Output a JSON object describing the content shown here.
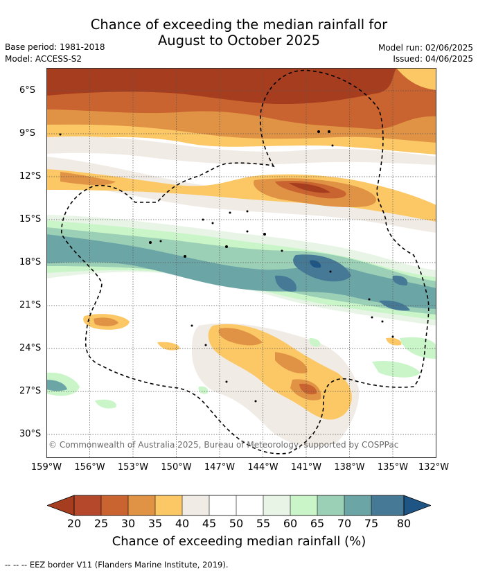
{
  "title": {
    "line1": "Chance of exceeding the median rainfall for",
    "line2": "August to October 2025"
  },
  "meta": {
    "base_period": "Base period: 1981-2018",
    "model": "Model: ACCESS-S2",
    "model_run": "Model run: 02/06/2025",
    "issued": "Issued: 04/06/2025"
  },
  "map": {
    "copyright": "© Commonwealth of Australia 2025, Bureau of Meteorology, supported by COSPPac",
    "lat_labels": [
      "6°S",
      "9°S",
      "12°S",
      "15°S",
      "18°S",
      "21°S",
      "24°S",
      "27°S",
      "30°S"
    ],
    "lon_labels": [
      "159°W",
      "156°W",
      "153°W",
      "150°W",
      "147°W",
      "144°W",
      "141°W",
      "138°W",
      "135°W",
      "132°W"
    ],
    "extent": {
      "lon": [
        -159,
        -132
      ],
      "lat": [
        -4.2,
        -31.6
      ]
    }
  },
  "colorbar": {
    "ticks": [
      "20",
      "25",
      "30",
      "35",
      "40",
      "45",
      "50",
      "55",
      "60",
      "65",
      "70",
      "75",
      "80"
    ],
    "colors": [
      "#a63d1f",
      "#b5482a",
      "#c9632f",
      "#e09345",
      "#fcc865",
      "#f0ebe4",
      "#ffffff",
      "#ffffff",
      "#e8f5e6",
      "#c9f5c8",
      "#9bd0b6",
      "#6ca5a5",
      "#457996",
      "#1e5585"
    ],
    "title": "Chance of exceeding median rainfall (%)"
  },
  "footer": {
    "legend": "--  --  -- EEZ border V11 (Flanders Marine Institute, 2019)."
  }
}
